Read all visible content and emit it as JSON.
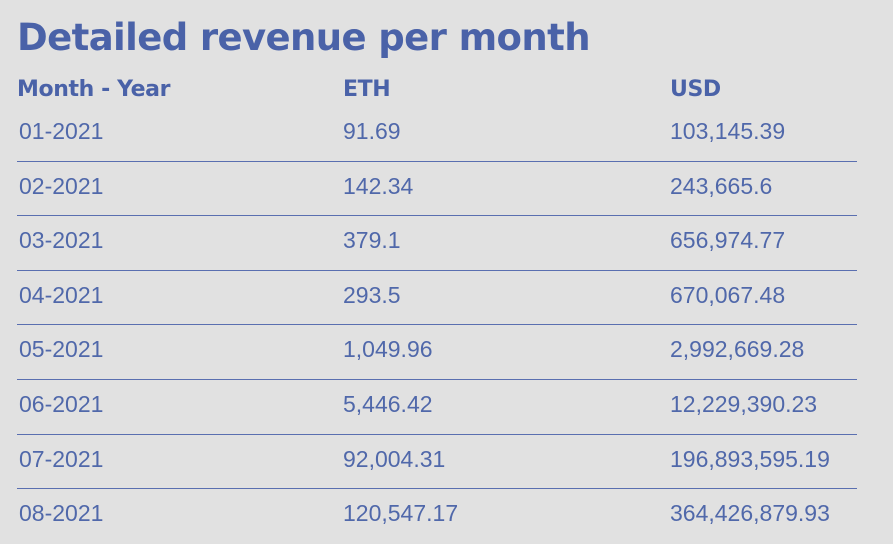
{
  "title": "Detailed revenue per month",
  "columns": [
    "Month - Year",
    "ETH",
    "USD"
  ],
  "rows": [
    [
      "01-2021",
      "91.69",
      "103,145.39"
    ],
    [
      "02-2021",
      "142.34",
      "243,665.6"
    ],
    [
      "03-2021",
      "379.1",
      "656,974.77"
    ],
    [
      "04-2021",
      "293.5",
      "670,067.48"
    ],
    [
      "05-2021",
      "1,049.96",
      "2,992,669.28"
    ],
    [
      "06-2021",
      "5,446.42",
      "12,229,390.23"
    ],
    [
      "07-2021",
      "92,004.31",
      "196,893,595.19"
    ],
    [
      "08-2021",
      "120,547.17",
      "364,426,879.93"
    ]
  ]
}
